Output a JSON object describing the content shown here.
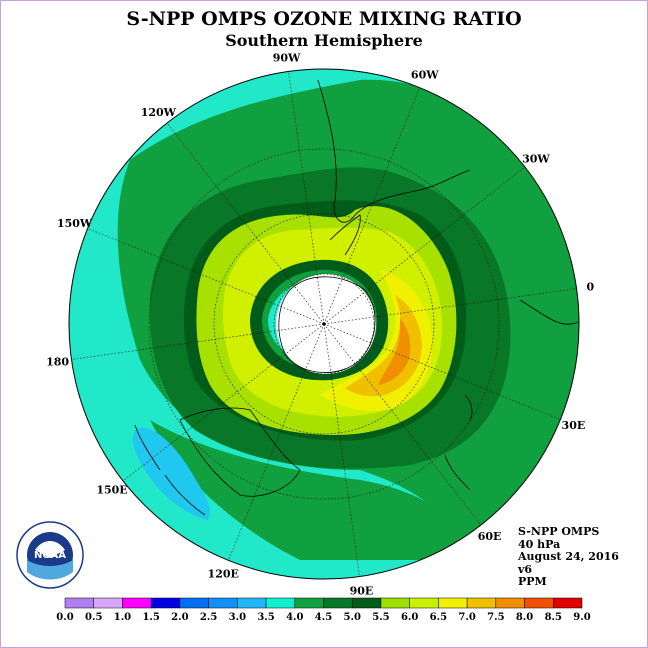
{
  "title": "S-NPP OMPS OZONE MIXING RATIO",
  "subtitle": "Southern Hemisphere",
  "longitude_labels": [
    "90W",
    "60W",
    "30W",
    "0",
    "30E",
    "60E",
    "90E",
    "120E",
    "150E",
    "180",
    "150W",
    "120W"
  ],
  "info": {
    "instrument": "S-NPP OMPS",
    "pressure": "40 hPa",
    "date": "August 24, 2016",
    "version": "v6",
    "units": "PPM"
  },
  "logo": {
    "text": "NOAA"
  },
  "colorbar": {
    "ticks": [
      "0.0",
      "0.5",
      "1.0",
      "1.5",
      "2.0",
      "2.5",
      "3.0",
      "3.5",
      "4.0",
      "4.5",
      "5.0",
      "5.5",
      "6.0",
      "6.5",
      "7.0",
      "7.5",
      "8.0",
      "8.5",
      "9.0"
    ],
    "colors": [
      "#b080f0",
      "#d8a8f8",
      "#ff00ff",
      "#0000e0",
      "#0070f0",
      "#1090f8",
      "#20b8f8",
      "#10f0d0",
      "#10a040",
      "#087828",
      "#005c18",
      "#a0e000",
      "#c8f000",
      "#f0f000",
      "#f0c000",
      "#f09000",
      "#f05000",
      "#e00000",
      "#8c5030"
    ]
  },
  "map_colors": {
    "c35": "#20e8c8",
    "c30": "#20c8f0",
    "c40": "#10a040",
    "c45": "#087828",
    "c50": "#005c18",
    "c55": "#a8e000",
    "c60": "#d0f000",
    "c65": "#f0f000",
    "c70": "#f0c000",
    "c75": "#f09000",
    "polar_night": "#ffffff"
  }
}
